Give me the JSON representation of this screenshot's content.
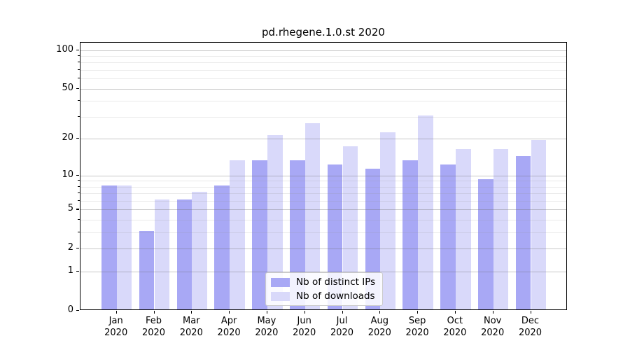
{
  "title": "pd.rhegene.1.0.st 2020",
  "colors": {
    "ips": "#a8a8f5",
    "downloads": "#d9d9fa",
    "axis": "#000000",
    "grid_major": "#c9c9c9",
    "grid_minor": "#e9e9e9"
  },
  "legend": {
    "items": [
      {
        "label": "Nb of distinct IPs",
        "color_key": "ips"
      },
      {
        "label": "Nb of downloads",
        "color_key": "downloads"
      }
    ]
  },
  "chart_data": {
    "type": "bar",
    "title": "pd.rhegene.1.0.st 2020",
    "categories": [
      "Jan 2020",
      "Feb 2020",
      "Mar 2020",
      "Apr 2020",
      "May 2020",
      "Jun 2020",
      "Jul 2020",
      "Aug 2020",
      "Sep 2020",
      "Oct 2020",
      "Nov 2020",
      "Dec 2020"
    ],
    "series": [
      {
        "name": "Nb of distinct IPs",
        "values": [
          8,
          3,
          6,
          8,
          13,
          13,
          12,
          11,
          13,
          12,
          9,
          14
        ]
      },
      {
        "name": "Nb of downloads",
        "values": [
          8,
          6,
          7,
          13,
          21,
          26,
          17,
          22,
          30,
          16,
          16,
          19
        ]
      }
    ],
    "xlabel": "",
    "ylabel": "",
    "yscale": "log1p",
    "ylim": [
      0,
      114
    ],
    "y_major_ticks": [
      0,
      1,
      2,
      5,
      10,
      20,
      50,
      100
    ],
    "y_minor_ticks": [
      3,
      4,
      6,
      7,
      8,
      9,
      30,
      40,
      60,
      70,
      80,
      90
    ],
    "grid": true,
    "legend_position": "lower center inside plot"
  }
}
